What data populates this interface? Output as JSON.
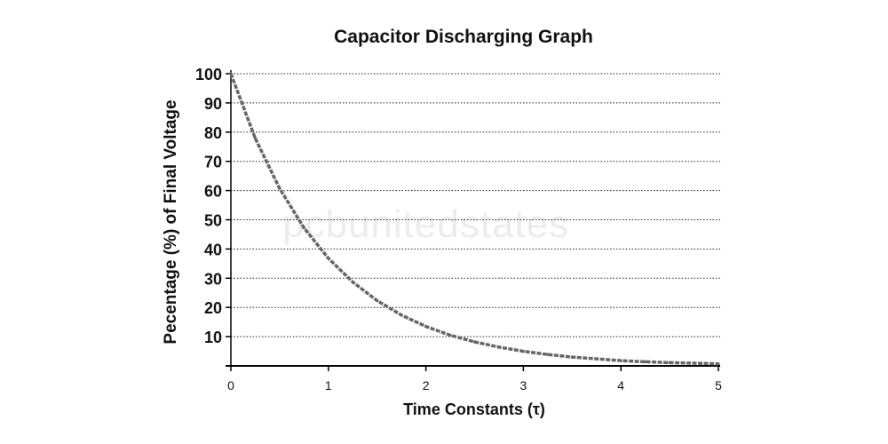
{
  "chart_data": {
    "type": "line",
    "title": "Capacitor Discharging Graph",
    "xlabel": "Time Constants (τ)",
    "ylabel": "Pecentage (%) of Final Voltage",
    "xlim": [
      0,
      5
    ],
    "ylim": [
      0,
      100
    ],
    "x_ticks": [
      "0",
      "1",
      "2",
      "3",
      "4",
      "5"
    ],
    "y_ticks": [
      "10",
      "20",
      "30",
      "40",
      "50",
      "60",
      "70",
      "80",
      "90",
      "100"
    ],
    "grid": "horizontal dotted",
    "series": [
      {
        "color": "#666666",
        "x": [
          0,
          0.25,
          0.5,
          0.75,
          1,
          1.25,
          1.5,
          1.75,
          2,
          2.25,
          2.5,
          2.75,
          3,
          3.25,
          3.5,
          3.75,
          4,
          4.25,
          4.5,
          4.75,
          5
        ],
        "y": [
          100,
          77.9,
          60.7,
          47.2,
          36.8,
          28.7,
          22.3,
          17.4,
          13.5,
          10.5,
          8.2,
          6.4,
          5.0,
          3.9,
          3.0,
          2.4,
          1.8,
          1.4,
          1.1,
          0.9,
          0.7
        ]
      }
    ],
    "watermark": "pcbunitedstates"
  }
}
